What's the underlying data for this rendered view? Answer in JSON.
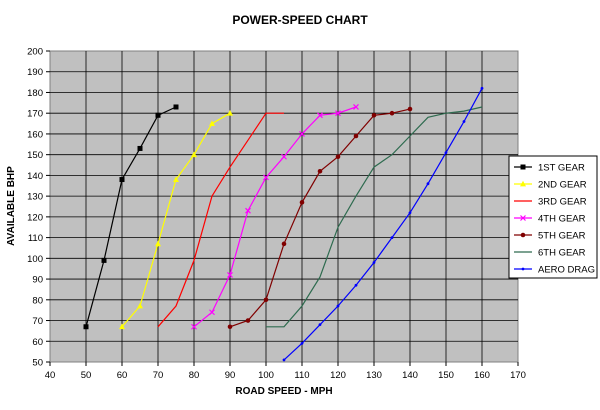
{
  "chart_data": {
    "type": "line",
    "title": "POWER-SPEED CHART",
    "xlabel": "ROAD SPEED - MPH",
    "ylabel": "AVAILABLE BHP",
    "xlim": [
      40,
      170
    ],
    "ylim": [
      50,
      200
    ],
    "xticks": [
      40,
      50,
      60,
      70,
      80,
      90,
      100,
      110,
      120,
      130,
      140,
      150,
      160,
      170
    ],
    "yticks": [
      50,
      60,
      70,
      80,
      90,
      100,
      110,
      120,
      130,
      140,
      150,
      160,
      170,
      180,
      190,
      200
    ],
    "grid": true,
    "plot_background": "#c0c0c0",
    "legend_position": "right",
    "series": [
      {
        "name": "1ST GEAR",
        "color": "#000000",
        "marker": "square",
        "x": [
          50,
          55,
          60,
          65,
          70,
          75
        ],
        "y": [
          67,
          99,
          138,
          153,
          169,
          173
        ]
      },
      {
        "name": "2ND GEAR",
        "color": "#ffff00",
        "marker": "triangle",
        "x": [
          60,
          65,
          70,
          75,
          80,
          85,
          90
        ],
        "y": [
          67,
          77,
          107,
          138,
          150,
          165,
          170
        ]
      },
      {
        "name": "3RD GEAR",
        "color": "#ff0000",
        "marker": "none",
        "x": [
          70,
          75,
          80,
          85,
          90,
          95,
          100,
          105
        ],
        "y": [
          67,
          77,
          99,
          130,
          144,
          157,
          170,
          170
        ]
      },
      {
        "name": "4TH GEAR",
        "color": "#ff00ff",
        "marker": "x",
        "x": [
          80,
          85,
          90,
          95,
          100,
          105,
          110,
          115,
          120,
          125
        ],
        "y": [
          67,
          74,
          92,
          123,
          139,
          149,
          160,
          169,
          170,
          173
        ]
      },
      {
        "name": "5TH GEAR",
        "color": "#800000",
        "marker": "circle",
        "x": [
          90,
          95,
          100,
          105,
          110,
          115,
          120,
          125,
          130,
          135,
          140
        ],
        "y": [
          67,
          70,
          80,
          107,
          127,
          142,
          149,
          159,
          169,
          170,
          172
        ]
      },
      {
        "name": "6TH GEAR",
        "color": "#2e6b4f",
        "marker": "none",
        "x": [
          100,
          105,
          110,
          115,
          120,
          125,
          130,
          135,
          140,
          145,
          150,
          155,
          160
        ],
        "y": [
          67,
          67,
          77,
          91,
          115,
          130,
          144,
          150,
          159,
          168,
          170,
          171,
          173
        ]
      },
      {
        "name": "AERO DRAG",
        "color": "#0000ff",
        "marker": "dot",
        "x": [
          105,
          110,
          115,
          120,
          125,
          130,
          135,
          140,
          145,
          150,
          155,
          160
        ],
        "y": [
          51,
          59,
          68,
          77,
          87,
          98,
          110,
          122,
          136,
          151,
          166,
          182
        ]
      }
    ]
  }
}
